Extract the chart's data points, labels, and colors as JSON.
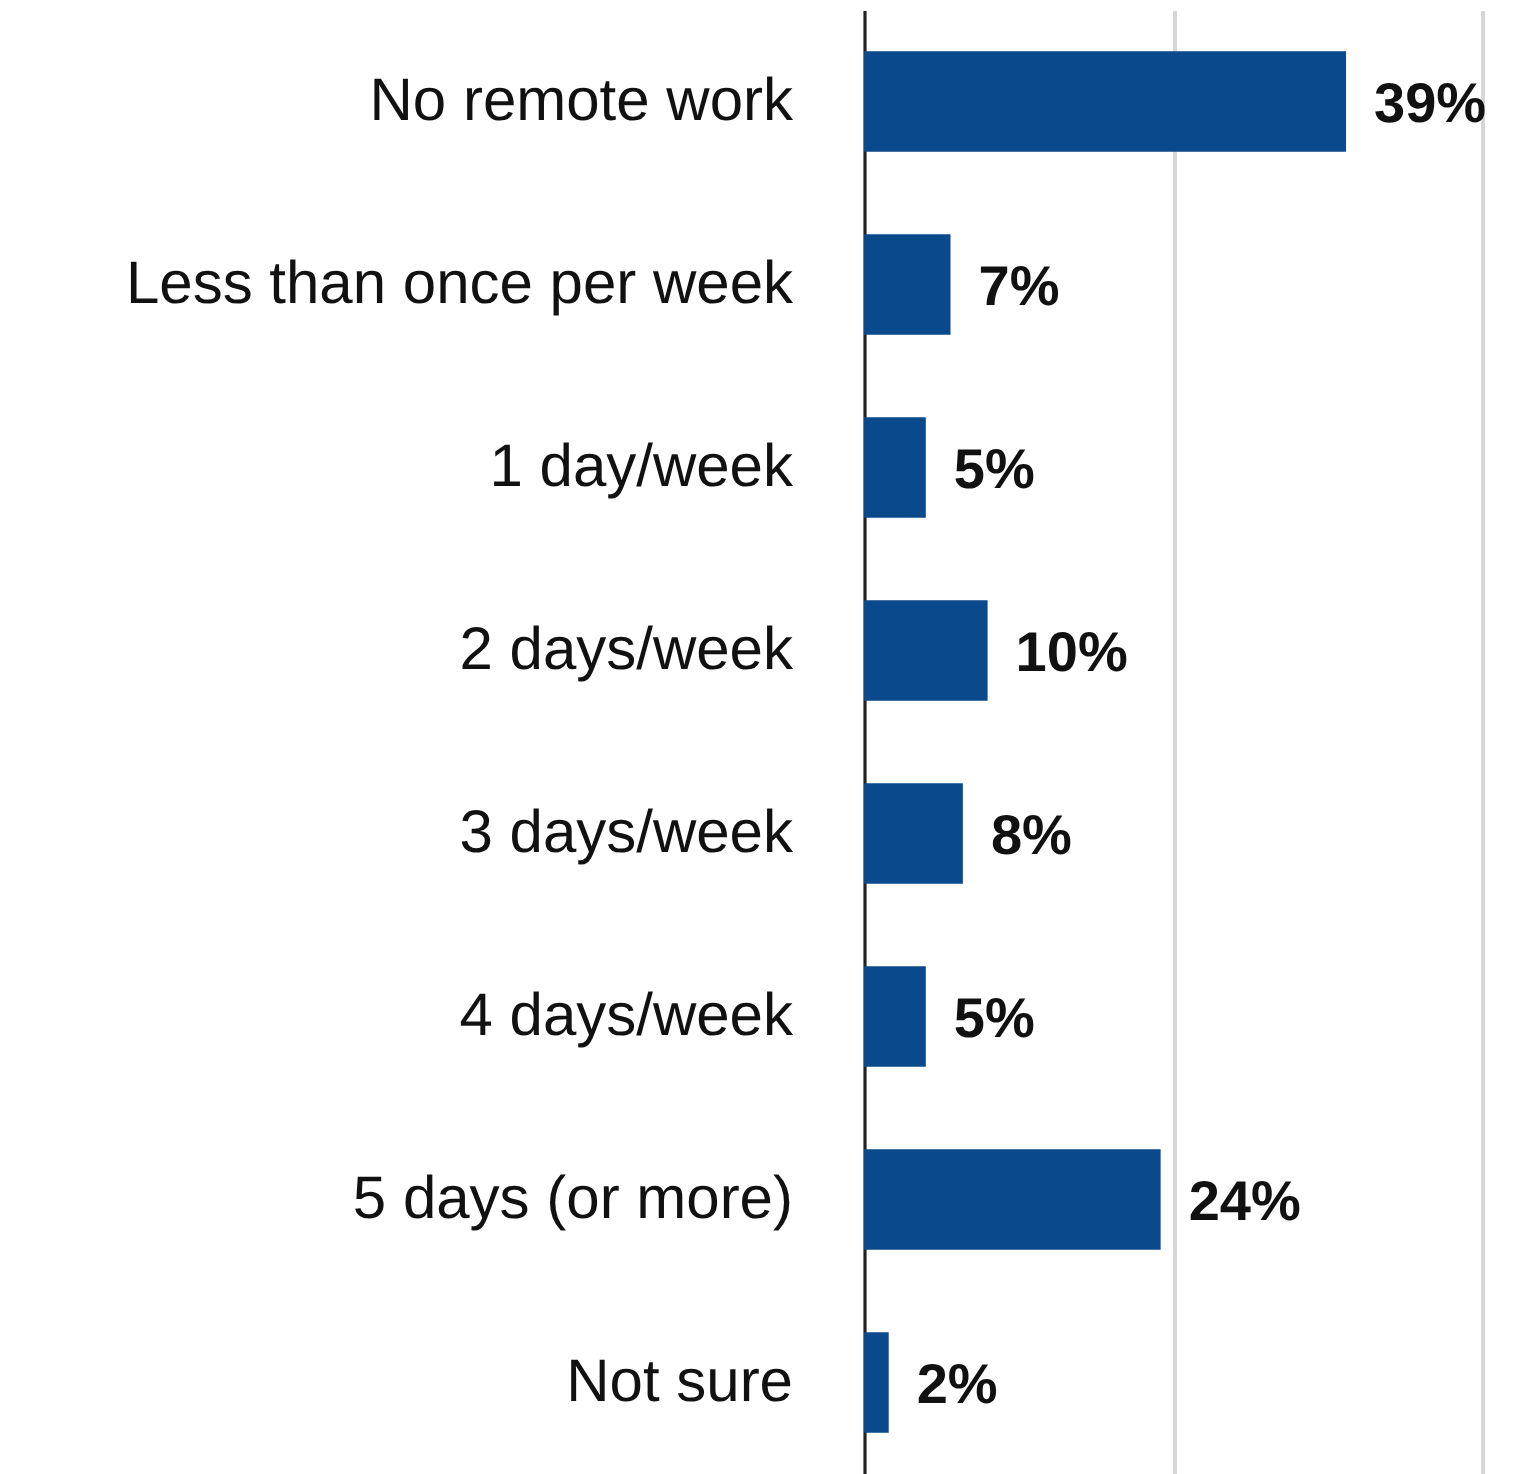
{
  "chart_data": {
    "type": "bar",
    "orientation": "horizontal",
    "categories": [
      "No remote work",
      "Less than once per week",
      "1 day/week",
      "2 days/week",
      "3 days/week",
      "4 days/week",
      "5 days (or more)",
      "Not sure"
    ],
    "values": [
      39,
      7,
      5,
      10,
      8,
      5,
      24,
      2
    ],
    "value_labels": [
      "39%",
      "7%",
      "5%",
      "10%",
      "8%",
      "5%",
      "24%",
      "2%"
    ],
    "color": "#0a4a8c",
    "xlim": [
      0,
      50
    ],
    "xticks": [
      {
        "value": 0,
        "label": null
      },
      {
        "value": 25,
        "label": null
      },
      {
        "value": 50,
        "label": null
      }
    ],
    "grid": "x",
    "tick_labels": "y"
  }
}
